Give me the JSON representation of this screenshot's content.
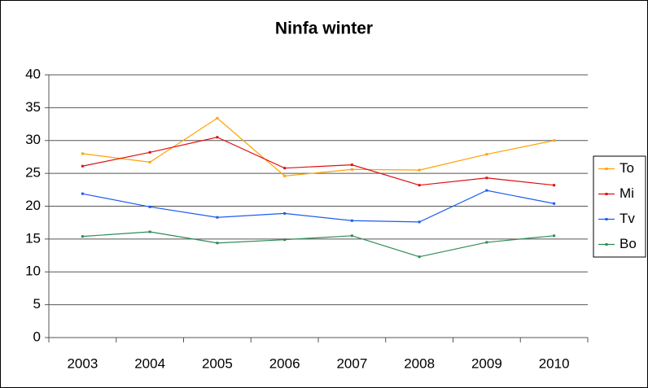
{
  "chart_data": {
    "type": "line",
    "title": "Ninfa winter",
    "categories": [
      "2003",
      "2004",
      "2005",
      "2006",
      "2007",
      "2008",
      "2009",
      "2010"
    ],
    "series": [
      {
        "name": "To",
        "color": "#ffa200",
        "values": [
          28.0,
          26.7,
          33.4,
          24.6,
          25.6,
          25.5,
          27.9,
          30.0
        ]
      },
      {
        "name": "Mi",
        "color": "#e01010",
        "values": [
          26.1,
          28.2,
          30.5,
          25.8,
          26.3,
          23.2,
          24.3,
          23.2
        ]
      },
      {
        "name": "Tv",
        "color": "#1c5cf0",
        "values": [
          21.9,
          19.9,
          18.3,
          18.9,
          17.8,
          17.6,
          22.4,
          20.4
        ]
      },
      {
        "name": "Bo",
        "color": "#2e8b57",
        "values": [
          15.4,
          16.1,
          14.4,
          14.9,
          15.5,
          12.3,
          14.5,
          15.5
        ]
      }
    ],
    "ylim": [
      0,
      40
    ],
    "yticks": [
      0,
      5,
      10,
      15,
      20,
      25,
      30,
      35,
      40
    ],
    "grid": true,
    "legend": "right"
  }
}
